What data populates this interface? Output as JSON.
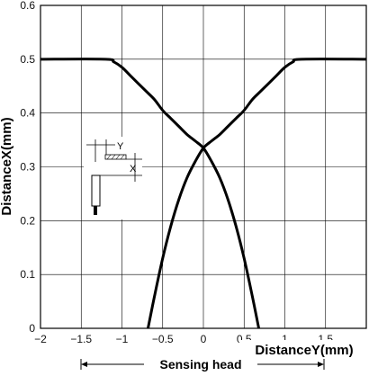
{
  "chart_data": {
    "type": "line",
    "xlabel": "DistanceY(mm)",
    "ylabel": "DistanceX(mm)",
    "xlim": [
      -2,
      2
    ],
    "ylim": [
      0,
      0.6
    ],
    "xticks": [
      -2,
      -1.5,
      -1,
      -0.5,
      0,
      0.5,
      1,
      1.5,
      2
    ],
    "xtick_labels": [
      "−2",
      "−1.5",
      "−1",
      "−0.5",
      "0",
      "0.5",
      "1",
      "1.5",
      ""
    ],
    "yticks": [
      0,
      0.1,
      0.2,
      0.3,
      0.4,
      0.5,
      0.6
    ],
    "ytick_labels": [
      "0",
      "0.1",
      "0.2",
      "0.3",
      "0.4",
      "0.5",
      "0.6"
    ],
    "grid": true,
    "series": [
      {
        "color": "#000000",
        "x": [
          -2,
          -1.2,
          -1.1,
          -1.0,
          -0.9,
          -0.8,
          -0.7,
          -0.6,
          -0.5,
          -0.4,
          -0.3,
          -0.2,
          -0.1,
          0,
          0.1,
          0.2,
          0.3,
          0.4,
          0.5,
          0.6,
          0.68
        ],
        "y": [
          0.5,
          0.5,
          0.495,
          0.485,
          0.47,
          0.455,
          0.44,
          0.425,
          0.405,
          0.39,
          0.375,
          0.36,
          0.348,
          0.335,
          0.31,
          0.28,
          0.24,
          0.19,
          0.13,
          0.06,
          0
        ]
      },
      {
        "color": "#000000",
        "x": [
          -0.68,
          -0.6,
          -0.5,
          -0.4,
          -0.3,
          -0.2,
          -0.1,
          0,
          0.1,
          0.2,
          0.3,
          0.4,
          0.5,
          0.6,
          0.7,
          0.8,
          0.9,
          1.0,
          1.1,
          1.2,
          2
        ],
        "y": [
          0,
          0.06,
          0.13,
          0.19,
          0.24,
          0.28,
          0.31,
          0.335,
          0.348,
          0.36,
          0.375,
          0.39,
          0.405,
          0.425,
          0.44,
          0.455,
          0.47,
          0.485,
          0.495,
          0.5,
          0.5
        ]
      }
    ],
    "annotations": {
      "sensing_head_label": "Sensing head",
      "inset_y_label": "Y",
      "inset_x_label": "X"
    }
  }
}
